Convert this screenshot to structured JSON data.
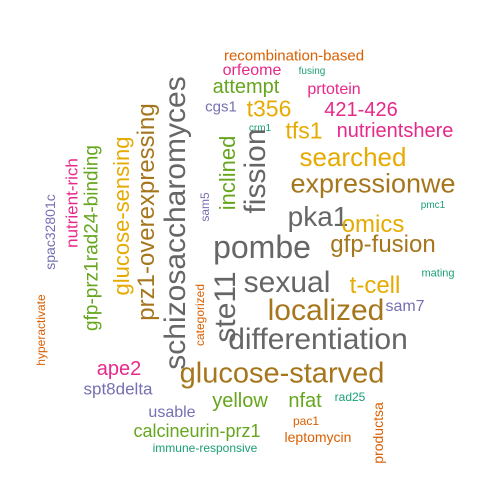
{
  "cloud": {
    "words": [
      {
        "text": "recombination-based",
        "color": "#D95F02"
      },
      {
        "text": "fusing",
        "color": "#1B9E77"
      },
      {
        "text": "orfeome",
        "color": "#E7298A"
      },
      {
        "text": "prtotein",
        "color": "#E7298A"
      },
      {
        "text": "attempt",
        "color": "#66A61E"
      },
      {
        "text": "cgs1",
        "color": "#7570B3"
      },
      {
        "text": "t356",
        "color": "#E6AB02"
      },
      {
        "text": "421-426",
        "color": "#E7298A"
      },
      {
        "text": "crm1",
        "color": "#1B9E77"
      },
      {
        "text": "tfs1",
        "color": "#E6AB02"
      },
      {
        "text": "nutrientshere",
        "color": "#E7298A"
      },
      {
        "text": "searched",
        "color": "#E6AB02"
      },
      {
        "text": "expressionwe",
        "color": "#A6761D"
      },
      {
        "text": "pka1",
        "color": "#666666"
      },
      {
        "text": "omics",
        "color": "#E6AB02"
      },
      {
        "text": "pmc1",
        "color": "#1B9E77"
      },
      {
        "text": "pombe",
        "color": "#666666"
      },
      {
        "text": "gfp-fusion",
        "color": "#A6761D"
      },
      {
        "text": "sexual",
        "color": "#666666"
      },
      {
        "text": "t-cell",
        "color": "#E6AB02"
      },
      {
        "text": "mating",
        "color": "#1B9E77"
      },
      {
        "text": "localized",
        "color": "#A6761D"
      },
      {
        "text": "sam7",
        "color": "#7570B3"
      },
      {
        "text": "differentiation",
        "color": "#666666"
      },
      {
        "text": "glucose-starved",
        "color": "#A6761D"
      },
      {
        "text": "ape2",
        "color": "#E7298A"
      },
      {
        "text": "spt8delta",
        "color": "#7570B3"
      },
      {
        "text": "yellow",
        "color": "#66A61E"
      },
      {
        "text": "nfat",
        "color": "#66A61E"
      },
      {
        "text": "rad25",
        "color": "#1B9E77"
      },
      {
        "text": "usable",
        "color": "#7570B3"
      },
      {
        "text": "pac1",
        "color": "#D95F02"
      },
      {
        "text": "calcineurin-prz1",
        "color": "#66A61E"
      },
      {
        "text": "leptomycin",
        "color": "#D95F02"
      },
      {
        "text": "immune-responsive",
        "color": "#1B9E77"
      },
      {
        "text": "hyperactivate",
        "color": "#D95F02"
      },
      {
        "text": "spac32801c",
        "color": "#7570B3"
      },
      {
        "text": "nutrient-rich",
        "color": "#E7298A"
      },
      {
        "text": "gfp-prz1rad24-binding",
        "color": "#66A61E"
      },
      {
        "text": "glucose-sensing",
        "color": "#E6AB02"
      },
      {
        "text": "prz1-overexpressing",
        "color": "#A6761D"
      },
      {
        "text": "schizosaccharomyces",
        "color": "#666666"
      },
      {
        "text": "categorized",
        "color": "#D95F02"
      },
      {
        "text": "sam5",
        "color": "#7570B3"
      },
      {
        "text": "inclined",
        "color": "#66A61E"
      },
      {
        "text": "fission",
        "color": "#666666"
      },
      {
        "text": "ste11",
        "color": "#666666"
      },
      {
        "text": "productsa",
        "color": "#D95F02"
      }
    ]
  }
}
